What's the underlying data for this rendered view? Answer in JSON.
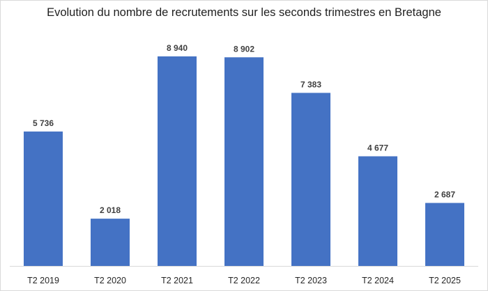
{
  "chart_data": {
    "type": "bar",
    "title": "Evolution du nombre de recrutements sur les seconds trimestres en Bretagne",
    "categories": [
      "T2 2019",
      "T2 2020",
      "T2 2021",
      "T2 2022",
      "T2 2023",
      "T2 2024",
      "T2 2025"
    ],
    "values": [
      5736,
      2018,
      8940,
      8902,
      7383,
      4677,
      2687
    ],
    "value_labels": [
      "5 736",
      "2 018",
      "8 940",
      "8 902",
      "7 383",
      "4 677",
      "2 687"
    ],
    "xlabel": "",
    "ylabel": "",
    "ylim": [
      0,
      10000
    ],
    "grid": false,
    "legend": "none",
    "bar_color": "#4472C4"
  }
}
